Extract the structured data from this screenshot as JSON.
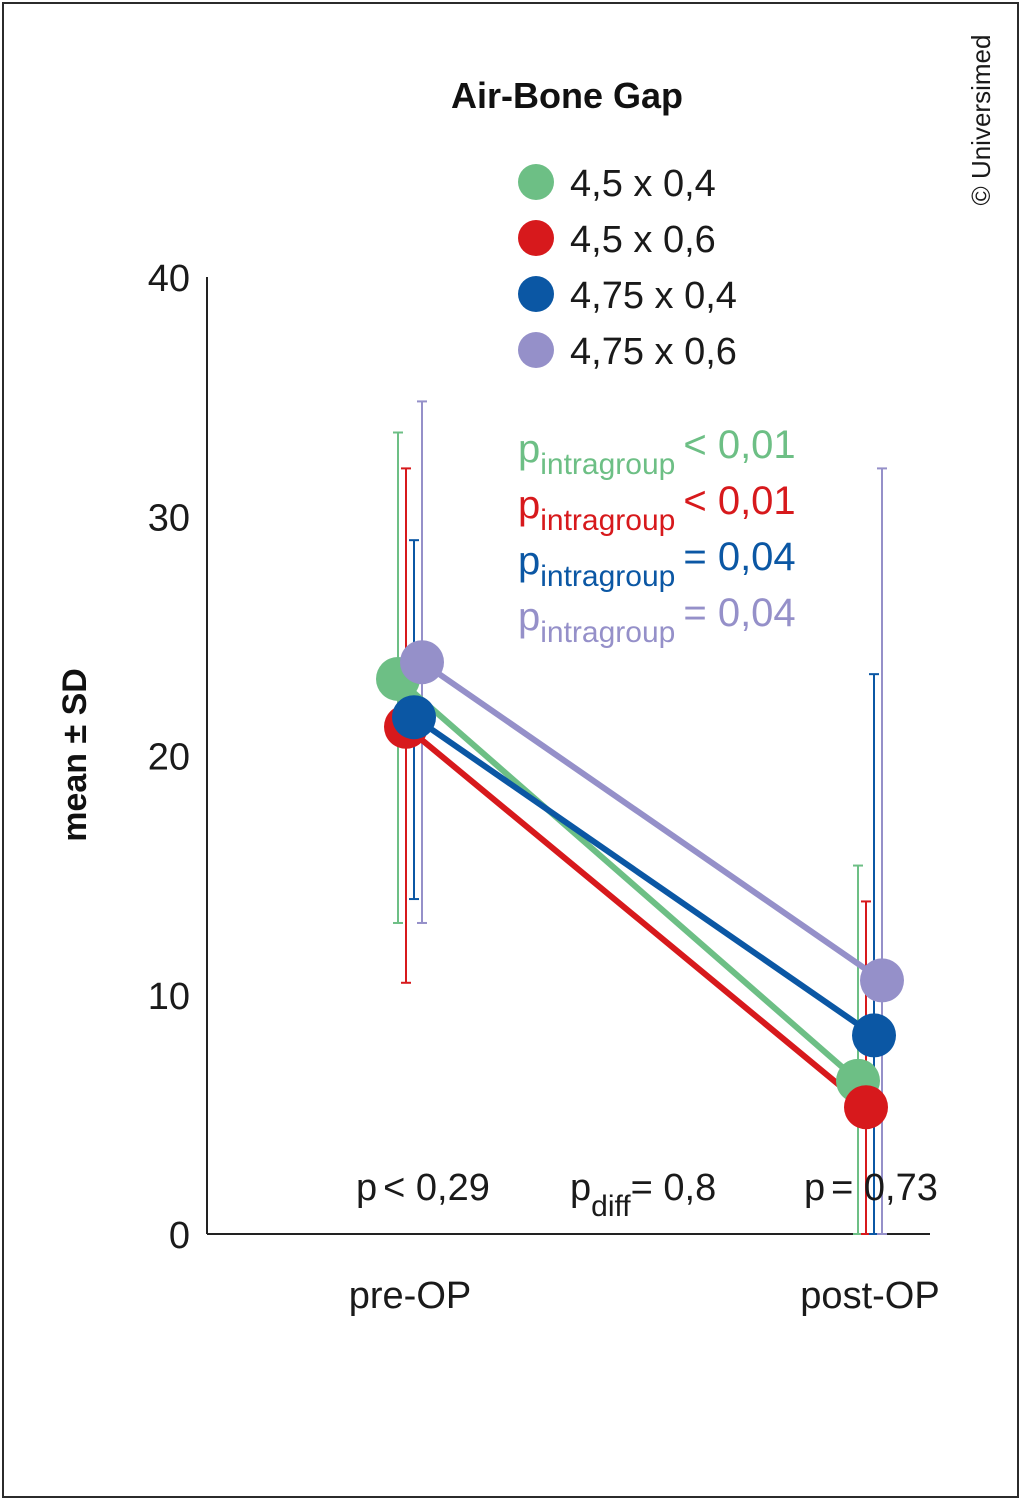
{
  "credit": "© Universimed",
  "chart_data": {
    "type": "line",
    "title": "Air-Bone Gap",
    "ylabel": "mean ± SD",
    "xlabel": "",
    "categories": [
      "pre-OP",
      "post-OP"
    ],
    "ylim": [
      0,
      40
    ],
    "yticks": [
      0,
      10,
      20,
      30,
      40
    ],
    "series": [
      {
        "name": "4,5 x 0,4",
        "color": "#6dbf85",
        "values": [
          23.2,
          6.4
        ],
        "sd_high": [
          33.5,
          15.4
        ],
        "sd_low": [
          13.0,
          0.0
        ]
      },
      {
        "name": "4,5 x 0,6",
        "color": "#d7191c",
        "values": [
          21.2,
          5.3
        ],
        "sd_high": [
          32.0,
          13.9
        ],
        "sd_low": [
          10.5,
          0.0
        ]
      },
      {
        "name": "4,75 x 0,4",
        "color": "#0b57a4",
        "values": [
          21.6,
          8.3
        ],
        "sd_high": [
          29.0,
          23.4
        ],
        "sd_low": [
          14.0,
          0.0
        ]
      },
      {
        "name": "4,75 x 0,6",
        "color": "#9590c9",
        "values": [
          23.9,
          10.6
        ],
        "sd_high": [
          34.8,
          32.0
        ],
        "sd_low": [
          13.0,
          0.0
        ]
      }
    ],
    "p_values": [
      {
        "label": "p",
        "subscript": "intragroup",
        "operator": "<",
        "value": "0,01",
        "color": "#6dbf85"
      },
      {
        "label": "p",
        "subscript": "intragroup",
        "operator": "<",
        "value": "0,01",
        "color": "#d7191c"
      },
      {
        "label": "p",
        "subscript": "intragroup",
        "operator": "=",
        "value": "0,04",
        "color": "#0b57a4"
      },
      {
        "label": "p",
        "subscript": "intragroup",
        "operator": "=",
        "value": "0,04",
        "color": "#9590c9"
      }
    ],
    "annotations": [
      {
        "prefix": "p",
        "sub": "",
        "rest": "< 0,29"
      },
      {
        "prefix": "p",
        "sub": "diff",
        "rest": "= 0,8"
      },
      {
        "prefix": "p",
        "sub": "",
        "rest": "= 0,73"
      }
    ],
    "grid": false,
    "legend": "top-center"
  }
}
